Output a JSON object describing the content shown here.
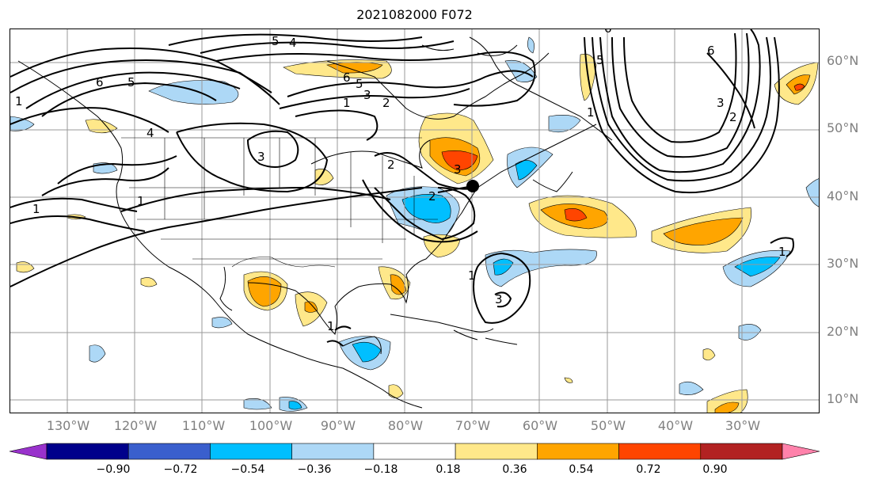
{
  "title": "2021082000 F072",
  "lat_labels": [
    "60°N",
    "50°N",
    "40°N",
    "30°N",
    "20°N",
    "10°N"
  ],
  "lon_labels": [
    "130°W",
    "120°W",
    "110°W",
    "100°W",
    "90°W",
    "80°W",
    "70°W",
    "60°W",
    "50°W",
    "40°W",
    "30°W"
  ],
  "colorbar": {
    "labels": [
      "−0.90",
      "−0.72",
      "−0.54",
      "−0.36",
      "−0.18",
      "0.18",
      "0.36",
      "0.54",
      "0.72",
      "0.90"
    ],
    "colors": [
      "#9932cc",
      "#00008b",
      "#3a5fcd",
      "#00bfff",
      "#add8f6",
      "#ffffff",
      "#ffe88a",
      "#ffa500",
      "#ff4500",
      "#b22222",
      "#ff82ab"
    ]
  },
  "contour_labels": [
    "5",
    "4",
    "6",
    "5",
    "6",
    "5",
    "3",
    "2",
    "4",
    "3",
    "1",
    "1",
    "1",
    "2",
    "3",
    "1",
    "3",
    "5",
    "6",
    "3",
    "2",
    "1",
    "1",
    "2",
    "1",
    "1",
    "6"
  ],
  "marker": "storm-center"
}
